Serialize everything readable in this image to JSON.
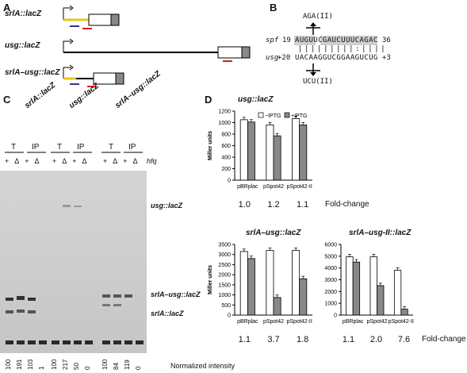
{
  "panels": {
    "a": "A",
    "b": "B",
    "c": "C",
    "d": "D"
  },
  "panel_a": {
    "constructs": [
      "srlA::lacZ",
      "usg::lacZ",
      "srlA–usg::lacZ"
    ]
  },
  "panel_b": {
    "spf_label": "spf",
    "spf_start": "19",
    "spf_seq": "AUGUUCGAUCUUUCAGAC",
    "spf_end": "36",
    "usg_label": "usg",
    "usg_start": "+20",
    "usg_seq": "UACAAGGUCGGAAGUCUG",
    "usg_end": "+3",
    "mut_top": "AGA(II)",
    "mut_bottom": "UCU(II)"
  },
  "panel_c": {
    "lane_groups": [
      "srlA::lacZ",
      "usg::lacZ",
      "srlA–usg::lacZ"
    ],
    "t_label": "T",
    "ip_label": "IP",
    "hfq_label": "hfq",
    "plus": "+",
    "delta": "Δ",
    "band_labels": [
      "usg::lacZ",
      "srlA–usg::lacZ",
      "srlA::lacZ"
    ],
    "normalized": [
      "100",
      "191",
      "103",
      "1",
      "100",
      "217",
      "50",
      "0",
      "100",
      "84",
      "119",
      "0"
    ],
    "normalized_label": "Normalized intensity"
  },
  "panel_d": {
    "legend_minus": "−IPTG",
    "legend_plus": "+IPTG",
    "ylabel": "Miller units",
    "foldchange_label": "Fold-change"
  },
  "chart_data": [
    {
      "type": "bar",
      "title": "usg::lacZ",
      "categories": [
        "pBRplac",
        "pSpot42",
        "pSpot42-II"
      ],
      "series": [
        {
          "name": "−IPTG",
          "values": [
            1050,
            960,
            1070
          ]
        },
        {
          "name": "+IPTG",
          "values": [
            1010,
            770,
            960
          ]
        }
      ],
      "ylim": [
        0,
        1200
      ],
      "yticks": [
        "0",
        "200",
        "400",
        "600",
        "800",
        "1000",
        "1200"
      ],
      "ylabel": "Miller units",
      "fold_change": [
        "1.0",
        "1.2",
        "1.1"
      ],
      "legend": "top-right"
    },
    {
      "type": "bar",
      "title": "srlA–usg::lacZ",
      "categories": [
        "pBRplac",
        "pSpot42",
        "pSpot42-II"
      ],
      "series": [
        {
          "name": "−IPTG",
          "values": [
            3150,
            3200,
            3200
          ]
        },
        {
          "name": "+IPTG",
          "values": [
            2800,
            870,
            1800
          ]
        }
      ],
      "ylim": [
        0,
        3500
      ],
      "yticks": [
        "0",
        "500",
        "1000",
        "1500",
        "2000",
        "2500",
        "3000",
        "3500"
      ],
      "ylabel": "Miller units",
      "fold_change": [
        "1.1",
        "3.7",
        "1.8"
      ]
    },
    {
      "type": "bar",
      "title": "srlA–usg-II::lacZ",
      "categories": [
        "pBRplac",
        "pSpot42",
        "pSpot42-II"
      ],
      "series": [
        {
          "name": "−IPTG",
          "values": [
            4950,
            4950,
            3800
          ]
        },
        {
          "name": "+IPTG",
          "values": [
            4500,
            2500,
            500
          ]
        }
      ],
      "ylim": [
        0,
        6000
      ],
      "yticks": [
        "0",
        "1000",
        "2000",
        "3000",
        "4000",
        "5000",
        "6000"
      ],
      "fold_change": [
        "1.1",
        "2.0",
        "7.6"
      ]
    }
  ]
}
